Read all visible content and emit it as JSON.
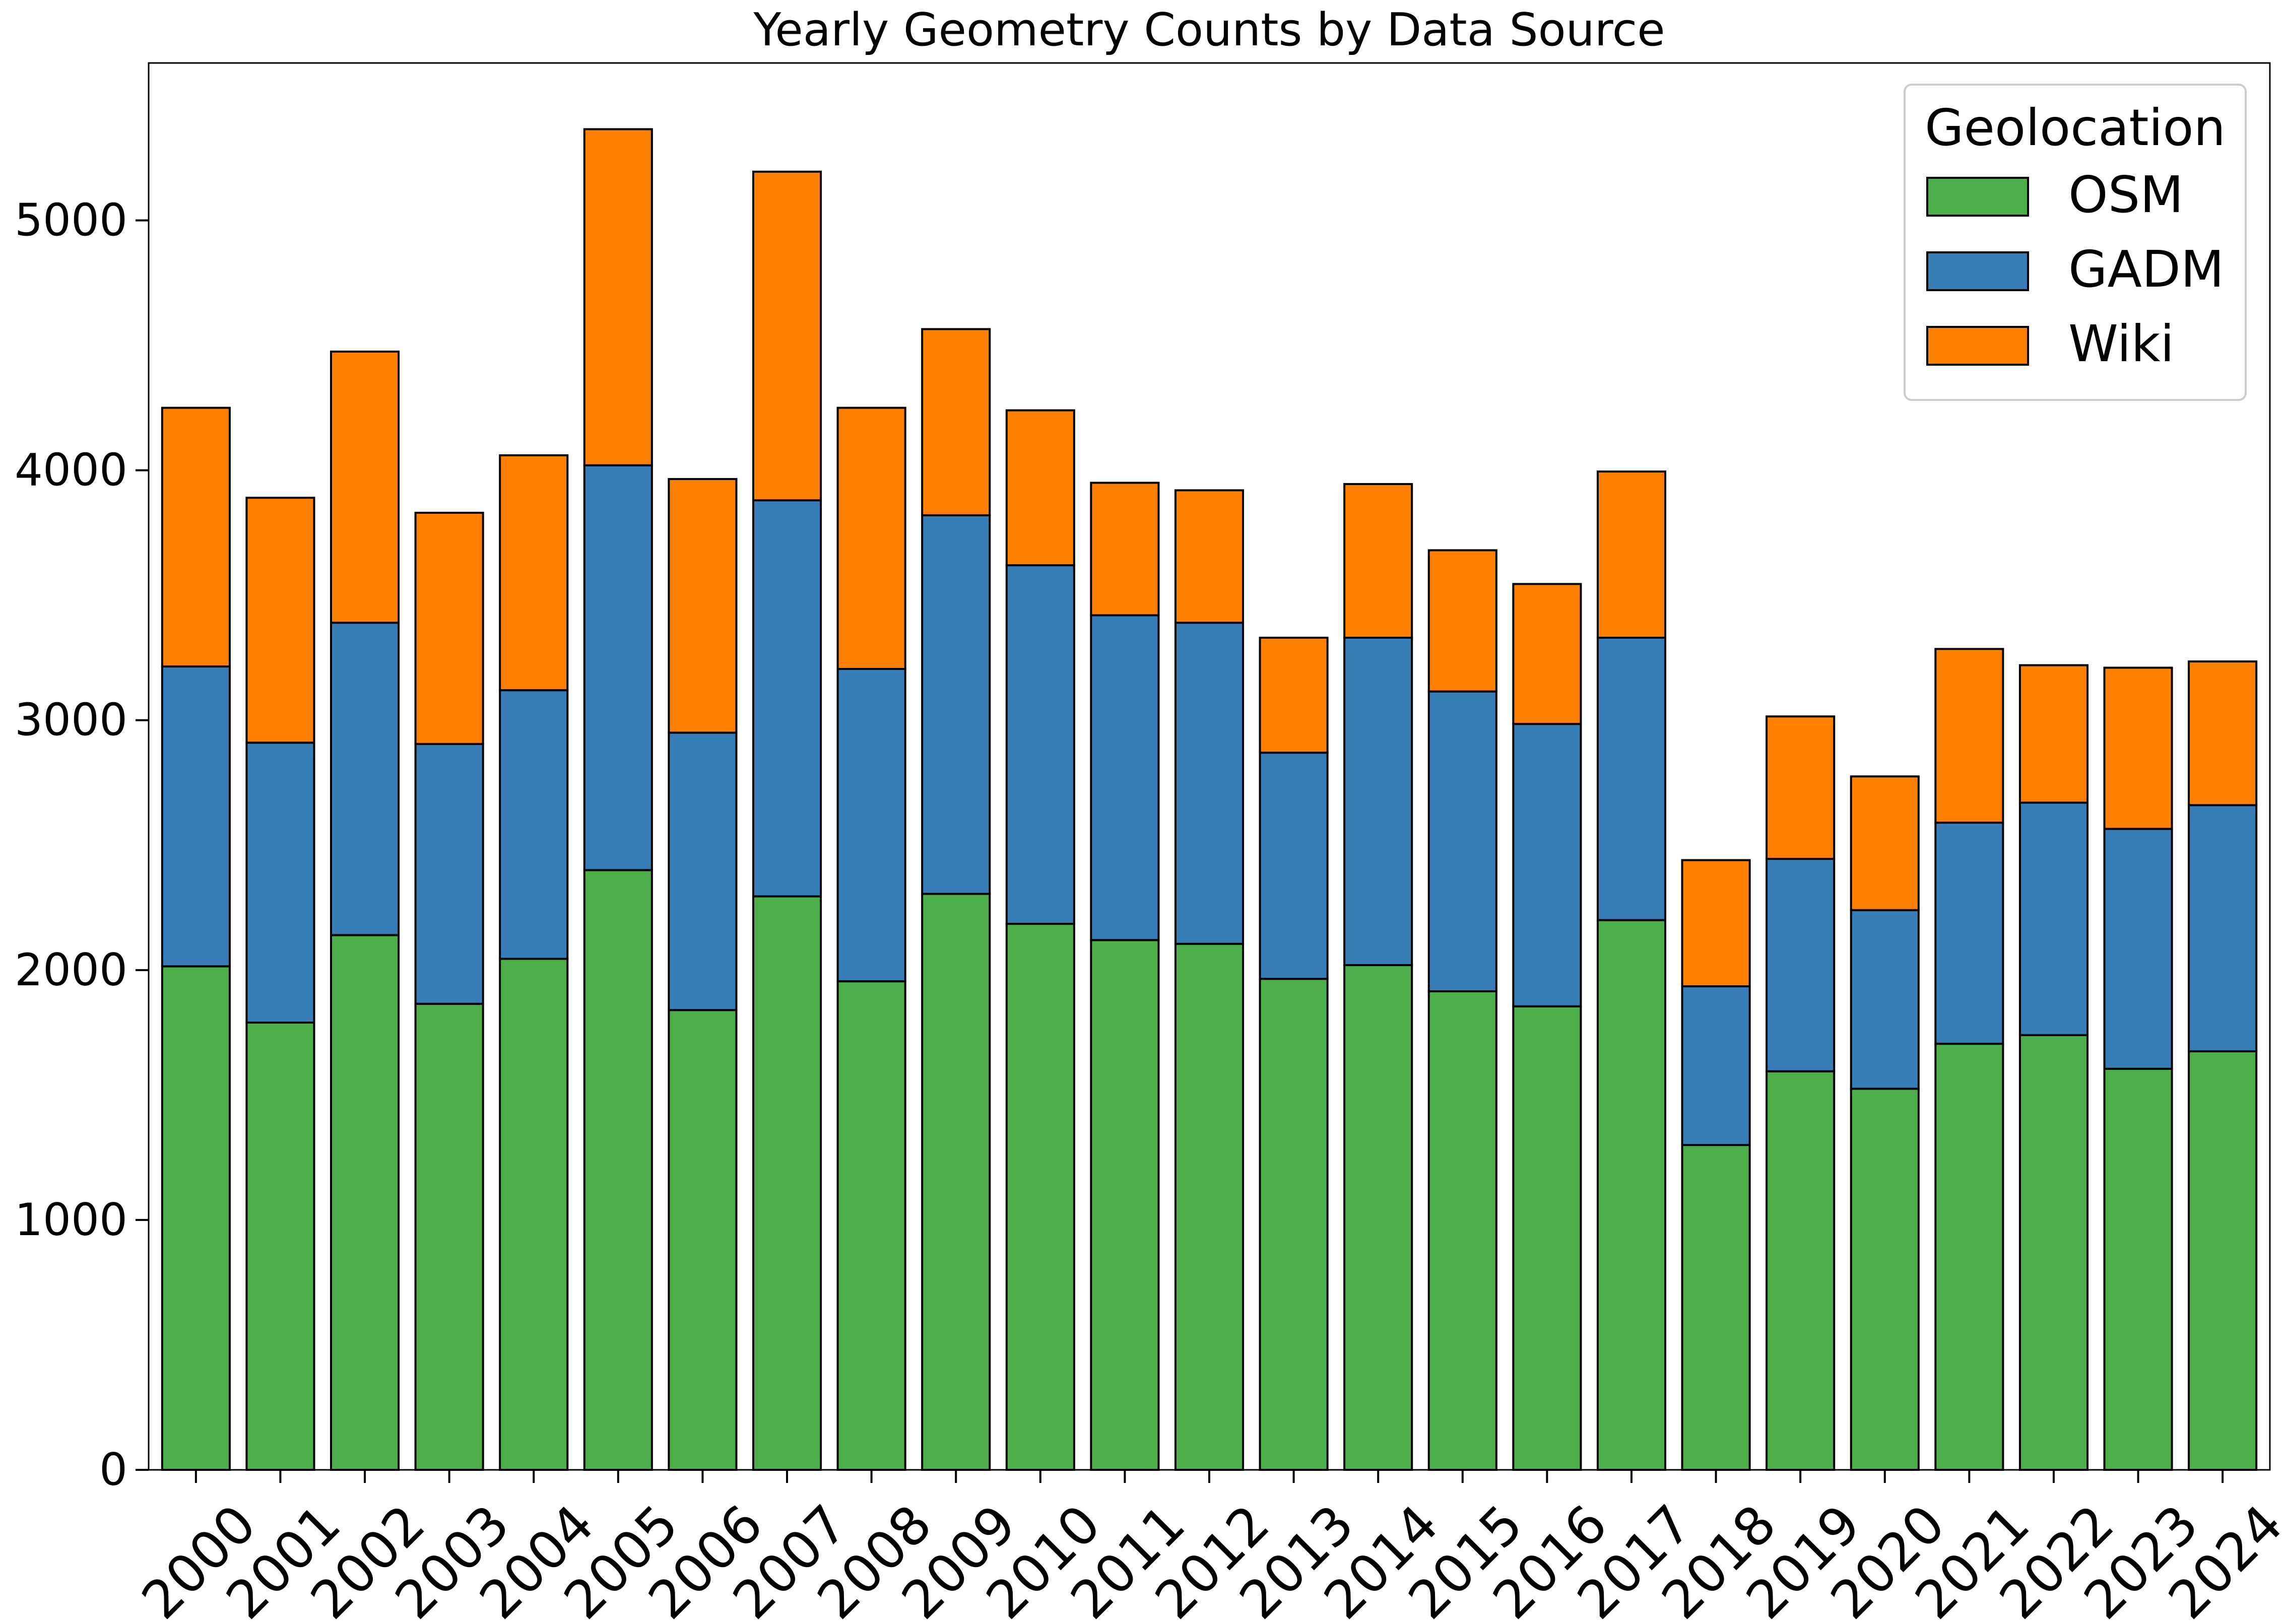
{
  "chart_data": {
    "type": "bar",
    "stacked": true,
    "title": "Yearly Geometry Counts by Data Source",
    "xlabel": "",
    "ylabel": "",
    "ylim": [
      0,
      5630
    ],
    "yticks": [
      0,
      1000,
      2000,
      3000,
      4000,
      5000
    ],
    "grid": false,
    "legend": {
      "title": "Geolocation",
      "position": "top-right"
    },
    "categories": [
      "2000",
      "2001",
      "2002",
      "2003",
      "2004",
      "2005",
      "2006",
      "2007",
      "2008",
      "2009",
      "2010",
      "2011",
      "2012",
      "2013",
      "2014",
      "2015",
      "2016",
      "2017",
      "2018",
      "2019",
      "2020",
      "2021",
      "2022",
      "2023",
      "2024"
    ],
    "series": [
      {
        "name": "OSM",
        "color": "#4daf4a",
        "values": [
          2015,
          1790,
          2140,
          1865,
          2045,
          2400,
          1840,
          2295,
          1955,
          2305,
          2185,
          2120,
          2105,
          1965,
          2020,
          1915,
          1855,
          2200,
          1300,
          1595,
          1525,
          1705,
          1740,
          1605,
          1675
        ]
      },
      {
        "name": "GADM",
        "color": "#377eb8",
        "values": [
          1200,
          1120,
          1250,
          1040,
          1075,
          1620,
          1110,
          1585,
          1250,
          1515,
          1435,
          1300,
          1285,
          905,
          1310,
          1200,
          1130,
          1130,
          635,
          850,
          715,
          885,
          930,
          960,
          985
        ]
      },
      {
        "name": "Wiki",
        "color": "#ff7f00",
        "values": [
          1035,
          980,
          1085,
          925,
          940,
          1345,
          1015,
          1315,
          1045,
          745,
          620,
          530,
          530,
          460,
          615,
          565,
          560,
          665,
          505,
          570,
          535,
          695,
          550,
          645,
          575
        ]
      }
    ]
  }
}
